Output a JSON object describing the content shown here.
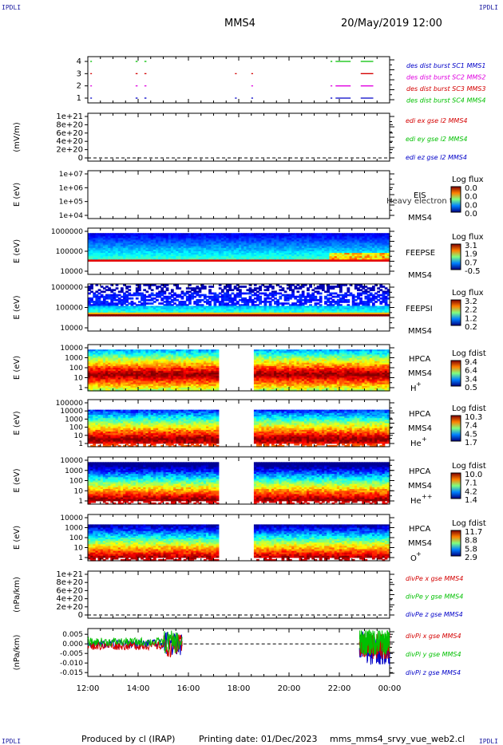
{
  "header": {
    "corner_left": "IPDLI",
    "corner_right": "IPDLI",
    "spacecraft": "MMS4",
    "datetime": "20/May/2019 12:00"
  },
  "footer": {
    "produced_by": "Produced by cl (IRAP)",
    "printing_date": "Printing date: 01/Dec/2023",
    "file": "mms_mms4_srvy_vue_web2.cl",
    "corner_left": "IPDLI",
    "corner_right": "IPDLI"
  },
  "colors": {
    "red": "#d40000",
    "magenta": "#e000e0",
    "green": "#00c000",
    "blue": "#0000c8"
  },
  "chart_data": [
    {
      "id": "burst",
      "type": "timeline",
      "yticks": [
        "4",
        "3",
        "2",
        "1"
      ],
      "legend": [
        {
          "label": "des dist burst SC1 MMS1",
          "color": "#0000c8"
        },
        {
          "label": "des dist burst SC2 MMS2",
          "color": "#e000e0"
        },
        {
          "label": "des dist burst SC3 MMS3",
          "color": "#d40000"
        },
        {
          "label": "des dist burst SC4 MMS4",
          "color": "#00c000"
        }
      ],
      "series": [
        {
          "level": 4,
          "color": "#00c000",
          "intervals": [
            [
              12.1,
              12.13
            ],
            [
              13.9,
              13.98
            ],
            [
              14.25,
              14.33
            ],
            [
              21.65,
              21.72
            ],
            [
              21.85,
              22.45
            ],
            [
              22.85,
              23.35
            ]
          ]
        },
        {
          "level": 3,
          "color": "#d40000",
          "intervals": [
            [
              12.1,
              12.13
            ],
            [
              13.9,
              13.98
            ],
            [
              14.25,
              14.33
            ],
            [
              17.85,
              17.92
            ],
            [
              18.5,
              18.57
            ],
            [
              22.85,
              23.35
            ]
          ]
        },
        {
          "level": 2,
          "color": "#e000e0",
          "intervals": [
            [
              12.1,
              12.13
            ],
            [
              13.9,
              13.98
            ],
            [
              14.25,
              14.33
            ],
            [
              18.5,
              18.57
            ],
            [
              21.65,
              21.72
            ],
            [
              21.85,
              22.45
            ],
            [
              22.85,
              23.35
            ]
          ]
        },
        {
          "level": 1,
          "color": "#0000c8",
          "intervals": [
            [
              12.1,
              12.13
            ],
            [
              13.9,
              13.98
            ],
            [
              14.25,
              14.33
            ],
            [
              17.85,
              17.92
            ],
            [
              18.5,
              18.57
            ],
            [
              21.65,
              21.72
            ],
            [
              21.85,
              22.45
            ],
            [
              22.85,
              23.35
            ]
          ]
        }
      ]
    },
    {
      "id": "edi",
      "type": "line",
      "ylabel": "(mV/m)",
      "yticks": [
        "1e+21",
        "8e+20",
        "6e+20",
        "4e+20",
        "2e+20",
        "0"
      ],
      "legend": [
        {
          "label": "edi ex gse l2 MMS4",
          "color": "#d40000"
        },
        {
          "label": "edi ey gse l2 MMS4",
          "color": "#00c000"
        },
        {
          "label": "edi ez gse l2 MMS4",
          "color": "#0000c8"
        }
      ]
    },
    {
      "id": "eis",
      "type": "spectrogram",
      "ylabel": "E (eV)",
      "yticks": [
        "1e+07",
        "1e+06",
        "1e+05",
        "1e+04"
      ],
      "instrument": "EIS",
      "sc": "MMS4",
      "overlay": "Heavy electron to",
      "cbar_title": "Log flux",
      "cbar_ticks": [
        "0.0",
        "0.0",
        "0.0",
        "0.0"
      ]
    },
    {
      "id": "feepse",
      "type": "spectrogram",
      "ylabel": "E (eV)",
      "yticks": [
        "1000000",
        "100000",
        "10000"
      ],
      "instrument": "FEEPSE",
      "sc": "MMS4",
      "cbar_title": "Log flux",
      "cbar_ticks": [
        "3.1",
        "1.9",
        "0.7",
        "-0.5"
      ]
    },
    {
      "id": "feepsi",
      "type": "spectrogram",
      "ylabel": "E (eV)",
      "yticks": [
        "1000000",
        "100000",
        "10000"
      ],
      "instrument": "FEEPSI",
      "sc": "MMS4",
      "cbar_title": "Log flux",
      "cbar_ticks": [
        "3.2",
        "2.2",
        "1.2",
        "0.2"
      ]
    },
    {
      "id": "hpca_h",
      "type": "spectrogram",
      "ylabel": "E (eV)",
      "yticks": [
        "10000",
        "1000",
        "100",
        "10",
        "1"
      ],
      "instrument": "HPCA",
      "sc": "MMS4",
      "species": "H",
      "charge": "+",
      "cbar_title": "Log fdist",
      "cbar_ticks": [
        "9.4",
        "6.4",
        "3.4",
        "0.5"
      ],
      "gap": [
        17.2,
        18.65
      ]
    },
    {
      "id": "hpca_he",
      "type": "spectrogram",
      "ylabel": "E (eV)",
      "yticks": [
        "100000",
        "10000",
        "1000",
        "100",
        "10",
        "1"
      ],
      "instrument": "HPCA",
      "sc": "MMS4",
      "species": "He",
      "charge": "+",
      "cbar_title": "Log fdist",
      "cbar_ticks": [
        "10.3",
        "7.4",
        "4.5",
        "1.7"
      ],
      "gap": [
        17.2,
        18.65
      ]
    },
    {
      "id": "hpca_hepp",
      "type": "spectrogram",
      "ylabel": "E (eV)",
      "yticks": [
        "10000",
        "1000",
        "100",
        "10",
        "1"
      ],
      "instrument": "HPCA",
      "sc": "MMS4",
      "species": "He",
      "charge": "++",
      "cbar_title": "Log fdist",
      "cbar_ticks": [
        "10.0",
        "7.1",
        "4.2",
        "1.4"
      ],
      "gap": [
        17.2,
        18.65
      ]
    },
    {
      "id": "hpca_o",
      "type": "spectrogram",
      "ylabel": "E (eV)",
      "yticks": [
        "10000",
        "1000",
        "100",
        "10",
        "1"
      ],
      "instrument": "HPCA",
      "sc": "MMS4",
      "species": "O",
      "charge": "+",
      "cbar_title": "Log fdist",
      "cbar_ticks": [
        "11.7",
        "8.8",
        "5.8",
        "2.9"
      ],
      "gap": [
        17.2,
        18.65
      ]
    },
    {
      "id": "divpe",
      "type": "line",
      "ylabel": "(nPa/km)",
      "yticks": [
        "1e+21",
        "8e+20",
        "6e+20",
        "4e+20",
        "2e+20",
        "0"
      ],
      "legend": [
        {
          "label": "divPe x gse MMS4",
          "color": "#d40000"
        },
        {
          "label": "divPe y gse MMS4",
          "color": "#00c000"
        },
        {
          "label": "divPe z gse MMS4",
          "color": "#0000c8"
        }
      ]
    },
    {
      "id": "divpi",
      "type": "line",
      "ylabel": "(nPa/km)",
      "yticks": [
        "0.005",
        "0.000",
        "-0.005",
        "-0.010",
        "-0.015"
      ],
      "ylim": [
        -0.017,
        0.008
      ],
      "legend": [
        {
          "label": "divPi x gse MMS4",
          "color": "#d40000"
        },
        {
          "label": "divPi y gse MMS4",
          "color": "#00c000"
        },
        {
          "label": "divPi z gse MMS4",
          "color": "#0000c8"
        }
      ],
      "x_range": [
        12,
        24
      ],
      "xticks": [
        "12:00",
        "14:00",
        "16:00",
        "18:00",
        "20:00",
        "22:00",
        "00:00"
      ]
    }
  ]
}
